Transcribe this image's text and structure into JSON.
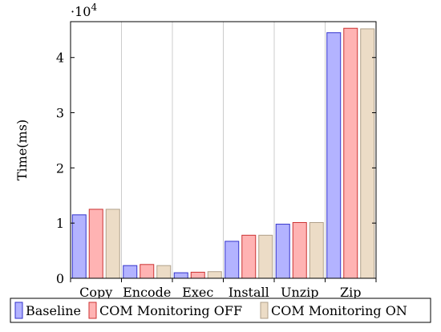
{
  "chart_data": {
    "type": "bar",
    "title": "",
    "xlabel": "",
    "ylabel": "Time(ms)",
    "y_scale_label": "·10",
    "y_scale_exponent": "4",
    "categories": [
      "Copy",
      "Encode",
      "Exec",
      "Install",
      "Unzip",
      "Zip"
    ],
    "yticks": [
      0,
      1,
      2,
      3,
      4
    ],
    "ylim": [
      0,
      4.65
    ],
    "y_multiplier": 10000,
    "grid": "vertical",
    "legend_placement": "bottom",
    "series": [
      {
        "name": "Baseline",
        "values": [
          1.15,
          0.23,
          0.1,
          0.67,
          0.98,
          4.45
        ],
        "fill": "#b3b3ff",
        "stroke": "#3333cc"
      },
      {
        "name": "COM Monitoring OFF",
        "values": [
          1.25,
          0.25,
          0.11,
          0.78,
          1.01,
          4.53
        ],
        "fill": "#ffb3b3",
        "stroke": "#cc3333"
      },
      {
        "name": "COM Monitoring ON",
        "values": [
          1.25,
          0.23,
          0.12,
          0.78,
          1.01,
          4.52
        ],
        "fill": "#ecdcc6",
        "stroke": "#b0a08a"
      }
    ]
  }
}
